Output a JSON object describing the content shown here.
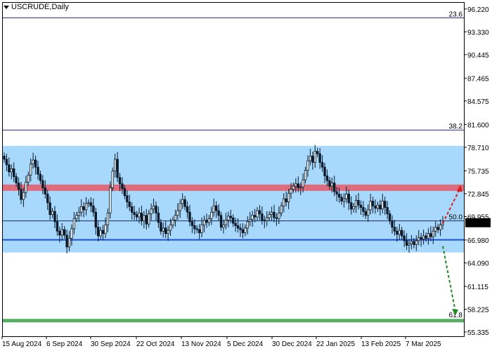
{
  "symbol_title": "USCRUDE,Daily",
  "colors": {
    "band": "#a8d8fb",
    "resistance": "#e3606f",
    "support_line": "#1e4fd8",
    "fib_line": "#1a2a6c",
    "target_line": "#3aa04a",
    "up_arrow": "#d91c1c",
    "down_arrow": "#1f8a20",
    "candle": "#0b1a2a",
    "price_box": "#000000"
  },
  "price_axis": {
    "labels": [
      "96.220",
      "93.330",
      "90.445",
      "87.465",
      "84.575",
      "81.600",
      "78.710",
      "75.735",
      "72.845",
      "69.955",
      "66.980",
      "64.090",
      "61.115",
      "58.225",
      "55.335"
    ],
    "current_price": "69.129"
  },
  "time_axis": {
    "labels": [
      "15 Aug 2024",
      "6 Sep 2024",
      "30 Sep 2024",
      "22 Oct 2024",
      "13 Nov 2024",
      "5 Dec 2024",
      "30 Dec 2024",
      "22 Jan 2025",
      "13 Feb 2025",
      "7 Mar 2025"
    ]
  },
  "fib_levels": [
    {
      "label": "23.6",
      "price": 95.1
    },
    {
      "label": "38.2",
      "price": 80.9
    },
    {
      "label": "50.0",
      "price": 69.4
    },
    {
      "label": "61.8",
      "price": 57.0
    }
  ],
  "zones": {
    "band_top": 78.9,
    "band_bottom": 65.4,
    "resistance_top": 74.0,
    "resistance_bottom": 73.2,
    "support_price": 67.0
  },
  "chart_data": {
    "type": "candlestick",
    "symbol": "USCRUDE",
    "timeframe": "Daily",
    "ylim": [
      54.8,
      97.0
    ],
    "close": [
      77.2,
      76.5,
      75.6,
      76.0,
      75.0,
      74.2,
      73.4,
      72.1,
      73.0,
      74.3,
      75.2,
      76.6,
      77.1,
      76.2,
      75.3,
      74.5,
      73.6,
      72.8,
      71.7,
      70.2,
      70.6,
      69.3,
      68.1,
      67.6,
      68.3,
      67.6,
      66.1,
      67.2,
      68.4,
      69.7,
      70.1,
      70.5,
      71.2,
      70.8,
      71.6,
      71.7,
      71.3,
      70.5,
      68.6,
      67.5,
      68.2,
      67.8,
      68.9,
      70.4,
      73.6,
      75.7,
      77.2,
      74.9,
      74.1,
      73.5,
      72.6,
      71.8,
      71.2,
      70.5,
      70.2,
      69.9,
      70.4,
      69.4,
      70.1,
      69.0,
      70.3,
      70.9,
      71.3,
      70.4,
      69.2,
      68.1,
      68.5,
      67.8,
      68.2,
      68.9,
      69.5,
      70.1,
      70.7,
      71.6,
      72.1,
      71.2,
      70.5,
      69.3,
      68.8,
      68.4,
      68.3,
      67.9,
      68.9,
      69.5,
      69.2,
      69.7,
      70.5,
      71.3,
      70.7,
      70.1,
      68.6,
      68.9,
      69.5,
      70.0,
      69.8,
      69.1,
      68.8,
      68.5,
      68.3,
      67.9,
      68.5,
      69.3,
      69.6,
      70.1,
      69.9,
      70.7,
      70.3,
      69.5,
      69.4,
      69.8,
      70.2,
      70.5,
      69.8,
      69.7,
      70.4,
      71.3,
      72.2,
      71.8,
      72.9,
      73.4,
      73.8,
      74.1,
      73.6,
      73.7,
      74.6,
      75.8,
      77.0,
      77.6,
      76.8,
      78.2,
      77.9,
      76.8,
      76.2,
      75.1,
      74.5,
      73.8,
      74.2,
      73.1,
      72.8,
      72.4,
      71.9,
      72.2,
      72.8,
      71.7,
      70.9,
      71.2,
      72.0,
      71.4,
      71.1,
      70.6,
      70.1,
      70.8,
      71.9,
      71.3,
      71.0,
      71.4,
      70.9,
      71.9,
      71.1,
      70.3,
      69.4,
      68.6,
      68.1,
      67.7,
      68.2,
      67.5,
      66.9,
      66.3,
      66.5,
      66.8,
      66.4,
      66.9,
      67.3,
      67.1,
      67.5,
      67.2,
      67.8,
      67.4,
      68.1,
      68.6,
      68.3,
      68.9,
      69.1
    ]
  }
}
